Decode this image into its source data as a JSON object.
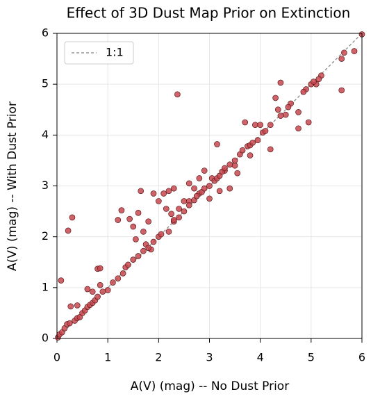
{
  "chart_data": {
    "type": "scatter",
    "title": "Effect of 3D Dust Map Prior on Extinction",
    "xlabel": "A(V) (mag) -- No Dust Prior",
    "ylabel": "A(V) (mag) -- With Dust Prior",
    "x": [
      2.37,
      4.4,
      5.6,
      5.85,
      5.6,
      5.65,
      0.08,
      0.22,
      0.3,
      0.27,
      0.4,
      0.6,
      0.7,
      0.8,
      0.85,
      0.85,
      1.2,
      1.27,
      1.43,
      1.5,
      1.6,
      1.65,
      1.55,
      1.7,
      1.8,
      1.75,
      1.85,
      1.9,
      2.0,
      2.1,
      2.2,
      2.3,
      2.15,
      2.25,
      2.4,
      2.5,
      2.6,
      2.7,
      2.8,
      2.9,
      3.05,
      3.15,
      3.3,
      3.5,
      3.55,
      3.7,
      3.8,
      3.9,
      4.0,
      4.2,
      4.3,
      4.35,
      4.6,
      4.75,
      4.75,
      4.95,
      4.9,
      5.0,
      5.1,
      5.2,
      6.0,
      4.5,
      3.4,
      3.2,
      3.0,
      2.8,
      2.6,
      2.3,
      2.2,
      2.0,
      0.02,
      0.05,
      0.1,
      0.15,
      0.2,
      0.25,
      0.35,
      0.4,
      0.45,
      0.5,
      0.55,
      0.6,
      0.65,
      0.7,
      0.75,
      0.8,
      0.9,
      1.0,
      1.1,
      1.2,
      1.3,
      1.35,
      1.4,
      1.5,
      1.6,
      1.7,
      1.8,
      1.9,
      2.05,
      2.3,
      2.4,
      2.5,
      2.6,
      2.7,
      2.75,
      2.85,
      2.9,
      3.0,
      3.1,
      3.15,
      3.2,
      3.25,
      3.3,
      3.4,
      3.5,
      3.6,
      3.65,
      3.75,
      3.8,
      3.85,
      3.95,
      4.05,
      4.1,
      4.2,
      4.4,
      4.55,
      4.85,
      5.05,
      5.15
    ],
    "y": [
      4.8,
      5.03,
      4.88,
      5.65,
      5.5,
      5.62,
      1.14,
      2.12,
      2.38,
      0.63,
      0.65,
      0.97,
      0.92,
      1.37,
      1.38,
      1.05,
      2.33,
      2.52,
      2.35,
      2.2,
      2.47,
      2.9,
      1.95,
      2.1,
      2.3,
      1.85,
      1.75,
      2.85,
      2.7,
      2.85,
      2.9,
      2.95,
      2.55,
      2.45,
      2.55,
      2.7,
      3.05,
      2.95,
      3.15,
      3.3,
      3.15,
      3.82,
      3.3,
      3.4,
      3.25,
      4.25,
      3.6,
      4.2,
      4.2,
      3.72,
      4.73,
      4.5,
      4.62,
      4.13,
      4.45,
      4.25,
      4.9,
      5.0,
      5.0,
      5.17,
      5.98,
      4.4,
      2.95,
      2.9,
      2.75,
      2.85,
      2.7,
      2.3,
      2.1,
      2.0,
      0.02,
      0.08,
      0.12,
      0.2,
      0.28,
      0.3,
      0.35,
      0.4,
      0.42,
      0.5,
      0.55,
      0.62,
      0.66,
      0.7,
      0.75,
      0.82,
      0.92,
      0.95,
      1.1,
      1.18,
      1.28,
      1.4,
      1.45,
      1.55,
      1.62,
      1.72,
      1.78,
      1.9,
      2.05,
      2.33,
      2.38,
      2.5,
      2.62,
      2.72,
      2.8,
      2.88,
      2.95,
      3.0,
      3.1,
      3.15,
      3.2,
      3.28,
      3.35,
      3.42,
      3.5,
      3.62,
      3.7,
      3.78,
      3.8,
      3.85,
      3.9,
      4.05,
      4.08,
      4.2,
      4.38,
      4.55,
      4.85,
      5.05,
      5.1
    ],
    "color": "#c8474f",
    "reference_line": {
      "name": "1:1",
      "x": [
        0,
        6
      ],
      "y": [
        0,
        6
      ],
      "color": "#808080"
    },
    "xlim": [
      0,
      6
    ],
    "ylim": [
      0,
      6
    ],
    "xticks": [
      0,
      1,
      2,
      3,
      4,
      5,
      6
    ],
    "yticks": [
      0,
      1,
      2,
      3,
      4,
      5,
      6
    ],
    "grid": true,
    "legend": "upper left"
  }
}
